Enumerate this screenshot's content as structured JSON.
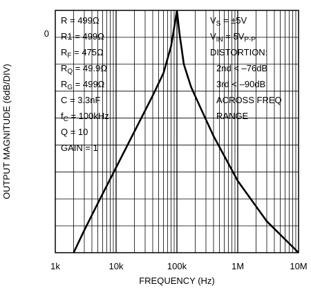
{
  "chart_data": {
    "type": "line",
    "xlabel": "FREQUENCY (Hz)",
    "ylabel": "OUTPUT MAGNITUDE (6dB/DIV)",
    "x_scale": "log",
    "xlim": [
      1000,
      10000000
    ],
    "ylim": [
      -54,
      0
    ],
    "x_ticks": [
      {
        "value": 1000,
        "label": "1k"
      },
      {
        "value": 10000,
        "label": "10k"
      },
      {
        "value": 100000,
        "label": "100k"
      },
      {
        "value": 1000000,
        "label": "1M"
      },
      {
        "value": 10000000,
        "label": "10M"
      }
    ],
    "y_ticks": [
      {
        "value": 0,
        "label": "0"
      }
    ],
    "y_division_db": 6,
    "grid": true,
    "series": [
      {
        "x": [
          2000,
          3000,
          5000,
          10000,
          20000,
          40000,
          60000,
          80000,
          95000,
          100000,
          110000,
          130000,
          170000,
          250000,
          400000,
          1000000,
          3000000,
          10000000
        ],
        "y": [
          -54,
          -49,
          -43,
          -35,
          -27,
          -19,
          -14,
          -8,
          -2,
          0,
          -5,
          -12,
          -17,
          -22,
          -28,
          -38,
          -47,
          -54
        ]
      }
    ],
    "annotations_left": [
      "R = 499Ω",
      "R1 = 499Ω",
      "RF = 475Ω",
      "RQ = 49.9Ω",
      "RG = 499Ω",
      "C = 3.3nF",
      "fC = 100kHz",
      "Q = 10",
      "GAIN = 1"
    ],
    "annotations_right": [
      "VS = ±5V",
      "VIN = 5VP-P",
      "DISTORTION:",
      "2nd < –76dB",
      "3rd < –90dB",
      "ACROSS FREQ",
      "RANGE"
    ]
  }
}
